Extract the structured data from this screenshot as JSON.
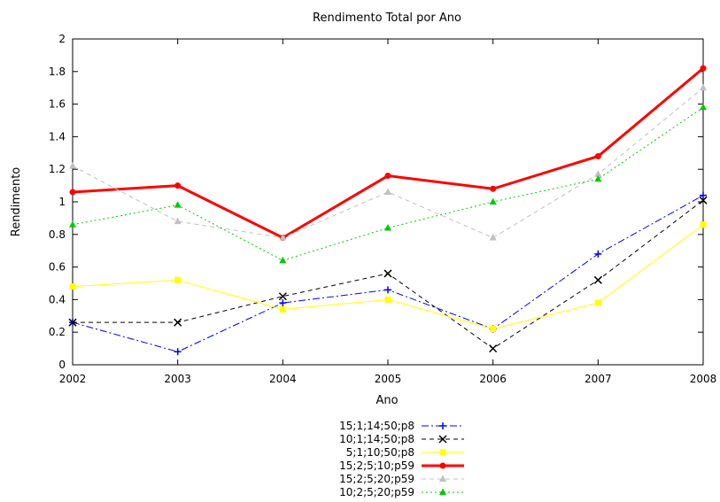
{
  "chart_data": {
    "type": "line",
    "title": "Rendimento Total por Ano",
    "xlabel": "Ano",
    "ylabel": "Rendimento",
    "x": [
      2002,
      2003,
      2004,
      2005,
      2006,
      2007,
      2008
    ],
    "xlim": [
      2002,
      2008
    ],
    "ylim": [
      0,
      2
    ],
    "yticks": [
      "0",
      "0.2",
      "0.4",
      "0.6",
      "0.8",
      "1",
      "1.2",
      "1.4",
      "1.6",
      "1.8",
      "2"
    ],
    "xticks": [
      "2002",
      "2003",
      "2004",
      "2005",
      "2006",
      "2007",
      "2008"
    ],
    "grid": false,
    "legend_position": "bottom-center",
    "series": [
      {
        "name": "15;1;14;50;p8",
        "color": "#0000ff",
        "dash": "dashdot",
        "marker": "plus",
        "width": "thin",
        "values": [
          0.26,
          0.08,
          0.38,
          0.46,
          0.22,
          0.68,
          1.04
        ]
      },
      {
        "name": "10;1;14;50;p8",
        "color": "#000000",
        "dash": "dashed",
        "marker": "cross",
        "width": "thin",
        "values": [
          0.26,
          0.26,
          0.42,
          0.56,
          0.1,
          0.52,
          1.01
        ]
      },
      {
        "name": "5;1;10;50;p8",
        "color": "#ffff00",
        "dash": "solid",
        "marker": "square",
        "width": "thin",
        "values": [
          0.48,
          0.52,
          0.34,
          0.4,
          0.22,
          0.38,
          0.86
        ]
      },
      {
        "name": "15;2;5;10;p59",
        "color": "#ff0000",
        "dash": "solid",
        "marker": "circle",
        "width": "thick",
        "values": [
          1.06,
          1.1,
          0.78,
          1.16,
          1.08,
          1.28,
          1.82
        ]
      },
      {
        "name": "15;2;5;20;p59",
        "color": "#c0c0c0",
        "dash": "dashed",
        "marker": "triangle",
        "width": "thin",
        "values": [
          1.22,
          0.88,
          0.78,
          1.06,
          0.78,
          1.17,
          1.7
        ]
      },
      {
        "name": "10;2;5;20;p59",
        "color": "#00cc00",
        "dash": "dotted",
        "marker": "triangle",
        "width": "thin",
        "values": [
          0.86,
          0.98,
          0.64,
          0.84,
          1.0,
          1.14,
          1.58
        ]
      }
    ]
  }
}
